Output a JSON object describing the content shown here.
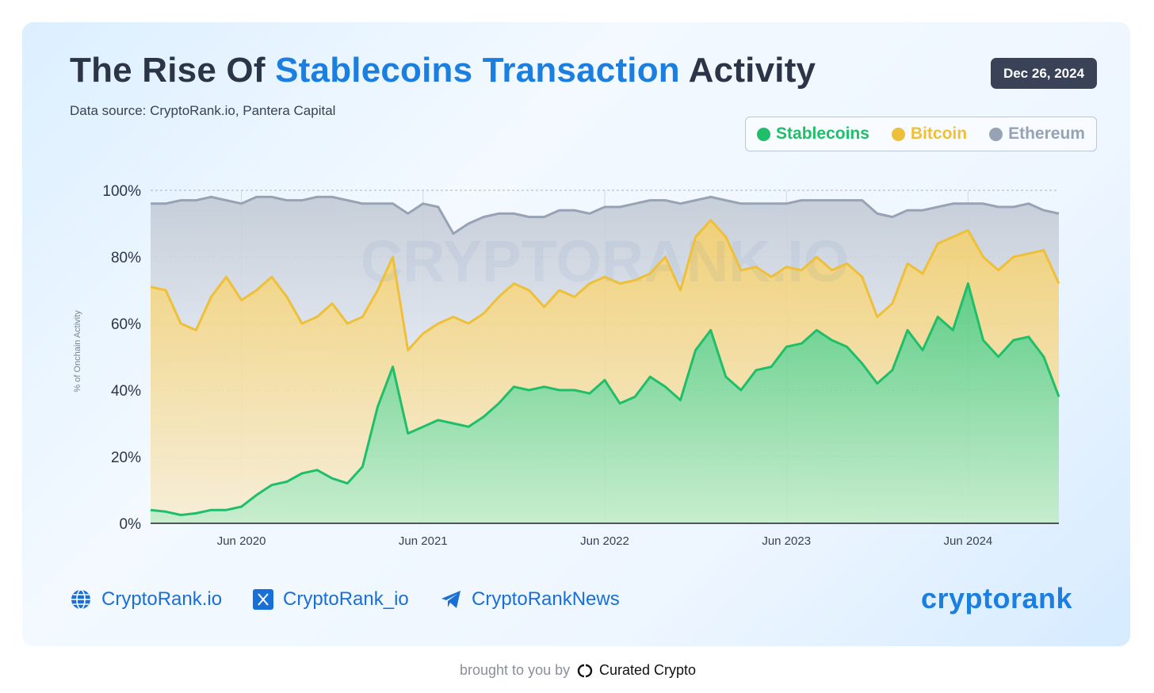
{
  "header": {
    "title_start": "The Rise Of ",
    "title_highlight": "Stablecoins Transaction",
    "title_end": " Activity",
    "subtitle": "Data source: CryptoRank.io, Pantera Capital",
    "date": "Dec 26, 2024"
  },
  "chart_data": {
    "type": "stacked_area",
    "y_label": "% of Onchain Activity",
    "watermark": "CRYPTORANK.IO",
    "x": [
      "2019-12",
      "2020-01",
      "2020-02",
      "2020-03",
      "2020-04",
      "2020-05",
      "2020-06",
      "2020-07",
      "2020-08",
      "2020-09",
      "2020-10",
      "2020-11",
      "2020-12",
      "2021-01",
      "2021-02",
      "2021-03",
      "2021-04",
      "2021-05",
      "2021-06",
      "2021-07",
      "2021-08",
      "2021-09",
      "2021-10",
      "2021-11",
      "2021-12",
      "2022-01",
      "2022-02",
      "2022-03",
      "2022-04",
      "2022-05",
      "2022-06",
      "2022-07",
      "2022-08",
      "2022-09",
      "2022-10",
      "2022-11",
      "2022-12",
      "2023-01",
      "2023-02",
      "2023-03",
      "2023-04",
      "2023-05",
      "2023-06",
      "2023-07",
      "2023-08",
      "2023-09",
      "2023-10",
      "2023-11",
      "2023-12",
      "2024-01",
      "2024-02",
      "2024-03",
      "2024-04",
      "2024-05",
      "2024-06",
      "2024-07",
      "2024-08",
      "2024-09",
      "2024-10",
      "2024-11",
      "2024-12"
    ],
    "xlim": [
      "2019-12",
      "2024-12"
    ],
    "xticks": [
      {
        "value": "2020-06",
        "label": "Jun 2020"
      },
      {
        "value": "2021-06",
        "label": "Jun 2021"
      },
      {
        "value": "2022-06",
        "label": "Jun 2022"
      },
      {
        "value": "2023-06",
        "label": "Jun 2023"
      },
      {
        "value": "2024-06",
        "label": "Jun 2024"
      }
    ],
    "ylim": [
      0,
      100
    ],
    "yticks": [
      {
        "value": 0,
        "label": "0%"
      },
      {
        "value": 20,
        "label": "20%"
      },
      {
        "value": 40,
        "label": "40%"
      },
      {
        "value": 60,
        "label": "60%"
      },
      {
        "value": 80,
        "label": "80%"
      },
      {
        "value": 100,
        "label": "100%"
      }
    ],
    "grid": true,
    "series": [
      {
        "name": "Stablecoins",
        "color": "#1fbf6a",
        "values": [
          4,
          3.5,
          2.5,
          3,
          4,
          4,
          5,
          8.5,
          11.5,
          12.5,
          15,
          16,
          13.5,
          12,
          17,
          35,
          47,
          27,
          29,
          31,
          30,
          29,
          32,
          36,
          41,
          40,
          41,
          40,
          40,
          39,
          43,
          36,
          38,
          44,
          41,
          37,
          52,
          58,
          44,
          40,
          46,
          47,
          53,
          54,
          58,
          55,
          53,
          48,
          42,
          46,
          58,
          52,
          62,
          58,
          72,
          55,
          50,
          55,
          56,
          50,
          38
        ]
      },
      {
        "name": "Bitcoin",
        "color": "#eec03a",
        "values": [
          67,
          66.5,
          57.5,
          55,
          64,
          70,
          62,
          61.5,
          62.5,
          55.5,
          45,
          46,
          52.5,
          48,
          45,
          35,
          33,
          25,
          28,
          29,
          32,
          31,
          31,
          32,
          31,
          30,
          24,
          30,
          28,
          33,
          31,
          36,
          35,
          31,
          39,
          33,
          34,
          33,
          42,
          36,
          31,
          27,
          24,
          22,
          22,
          21,
          25,
          26,
          20,
          20,
          20,
          23,
          22,
          28,
          16,
          25,
          26,
          25,
          25,
          32,
          34
        ]
      },
      {
        "name": "Ethereum",
        "color": "#97a3b4",
        "values": [
          25,
          26,
          37,
          39,
          30,
          23,
          29,
          28,
          24,
          29,
          37,
          36,
          32,
          37,
          34,
          26,
          16,
          41,
          39,
          35,
          25,
          30,
          29,
          25,
          21,
          22,
          27,
          24,
          26,
          21,
          21,
          23,
          23,
          22,
          17,
          26,
          11,
          7,
          11,
          20,
          19,
          22,
          19,
          21,
          17,
          21,
          19,
          23,
          31,
          26,
          16,
          19,
          11,
          10,
          8,
          16,
          19,
          15,
          15,
          12,
          21
        ]
      }
    ]
  },
  "footer": {
    "site": "CryptoRank.io",
    "x_handle": "CryptoRank_io",
    "telegram": "CryptoRankNews",
    "logo": "cryptorank",
    "brought_by": "brought to you by",
    "sponsor": "Curated Crypto"
  }
}
